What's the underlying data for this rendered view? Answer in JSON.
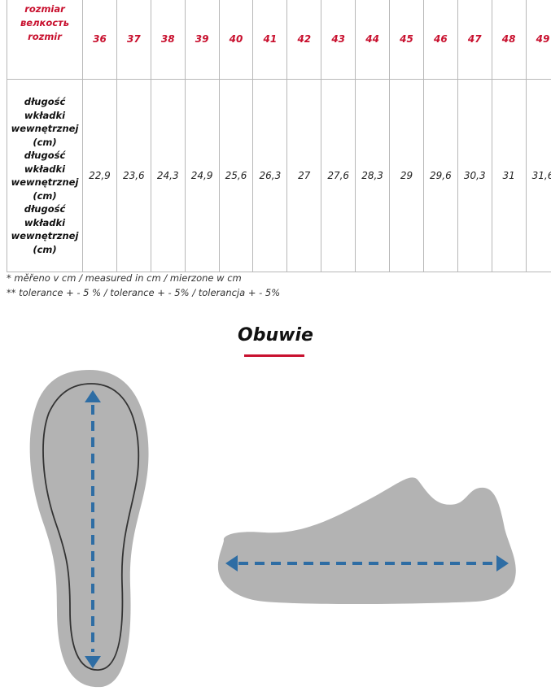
{
  "table": {
    "header_label": [
      "rozmiar",
      "велкость",
      "rozmir"
    ],
    "sizes": [
      "36",
      "37",
      "38",
      "39",
      "40",
      "41",
      "42",
      "43",
      "44",
      "45",
      "46",
      "47",
      "48",
      "49"
    ],
    "row_label": [
      "długość",
      "wkładki",
      "wewnętrznej",
      "(cm)",
      "długość",
      "wkładki",
      "wewnętrznej",
      "(cm)",
      "długość",
      "wkładki",
      "wewnętrznej",
      "(cm)"
    ],
    "values": [
      "22,9",
      "23,6",
      "24,3",
      "24,9",
      "25,6",
      "26,3",
      "27",
      "27,6",
      "28,3",
      "29",
      "29,6",
      "30,3",
      "31",
      "31,6"
    ]
  },
  "notes": [
    "* měřeno v cm / measured in cm / mierzone w cm",
    "** tolerance + - 5 % / tolerance + - 5% / tolerancja + - 5%"
  ],
  "section_title": "Obuwie",
  "colors": {
    "accent": "#c8102e",
    "arrow": "#2e6da4",
    "shape": "#b3b3b3"
  }
}
